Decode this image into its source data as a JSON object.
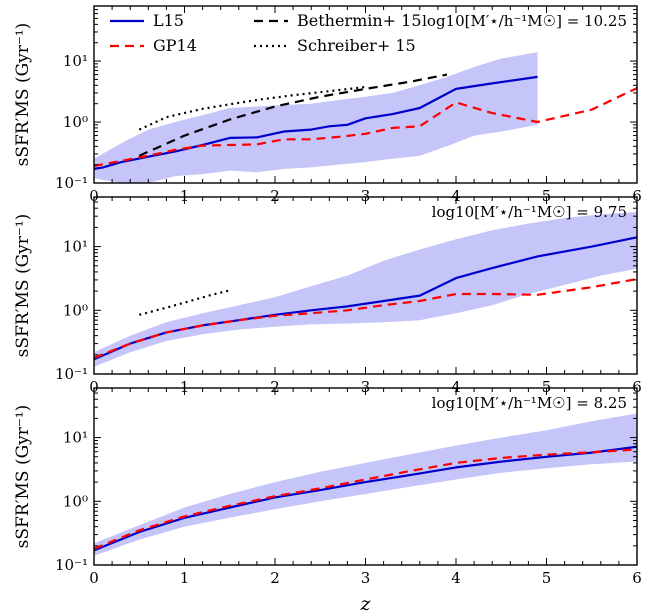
{
  "chart_data": [
    {
      "type": "line",
      "annotation": "log10[M′⋆/h⁻¹M☉] = 10.25",
      "ylabel": "sSFR′MS (Gyr⁻¹)",
      "xlim": [
        0,
        6
      ],
      "ylim": [
        0.1,
        80
      ],
      "yscale": "log",
      "yticks": [
        "10⁻¹",
        "10⁰",
        "10¹"
      ],
      "xticks": [
        "0",
        "1",
        "2",
        "3",
        "4",
        "5",
        "6"
      ],
      "legend": {
        "position": "top-left",
        "entries": [
          {
            "label": "L15",
            "style": "solid",
            "color": "#0000cc"
          },
          {
            "label": "Bethermin+ 15",
            "style": "dashed",
            "color": "#000000"
          },
          {
            "label": "GP14",
            "style": "dashed",
            "color": "#ff0000"
          },
          {
            "label": "Schreiber+ 15",
            "style": "dotted",
            "color": "#000000"
          }
        ]
      },
      "band": {
        "color": "#c5c5fa",
        "x": [
          0,
          0.3,
          0.6,
          0.9,
          1.2,
          1.5,
          1.8,
          2.1,
          2.4,
          2.7,
          3.0,
          3.3,
          3.6,
          3.9,
          4.2,
          4.5,
          4.9
        ],
        "low": [
          0.12,
          0.1,
          0.1,
          0.13,
          0.14,
          0.16,
          0.15,
          0.17,
          0.18,
          0.2,
          0.22,
          0.25,
          0.28,
          0.4,
          0.6,
          0.7,
          0.9
        ],
        "high": [
          0.25,
          0.45,
          0.75,
          1.0,
          1.3,
          1.7,
          1.8,
          1.9,
          2.0,
          2.3,
          2.6,
          3.0,
          4.0,
          5.5,
          8.0,
          11.0,
          14.0
        ]
      },
      "series": [
        {
          "name": "L15",
          "style": "solid",
          "color": "#0000cc",
          "x": [
            0,
            0.1,
            0.3,
            0.6,
            0.9,
            1.2,
            1.5,
            1.8,
            2.1,
            2.4,
            2.6,
            2.8,
            3.0,
            3.3,
            3.6,
            4.0,
            4.4,
            4.9
          ],
          "y": [
            0.17,
            0.18,
            0.22,
            0.27,
            0.33,
            0.42,
            0.55,
            0.56,
            0.7,
            0.75,
            0.85,
            0.9,
            1.15,
            1.35,
            1.7,
            3.5,
            4.3,
            5.5
          ]
        },
        {
          "name": "GP14",
          "style": "dashed",
          "color": "#ff0000",
          "x": [
            0,
            0.3,
            0.6,
            0.9,
            1.2,
            1.5,
            1.8,
            2.1,
            2.4,
            2.7,
            3.0,
            3.3,
            3.6,
            4.0,
            4.4,
            4.9,
            5.5,
            6.0
          ],
          "y": [
            0.19,
            0.23,
            0.28,
            0.35,
            0.41,
            0.42,
            0.43,
            0.52,
            0.52,
            0.57,
            0.64,
            0.8,
            0.85,
            2.1,
            1.4,
            1.0,
            1.6,
            3.6
          ]
        },
        {
          "name": "Bethermin+ 15",
          "style": "dashed",
          "color": "#000000",
          "x": [
            0.5,
            1.0,
            1.5,
            2.0,
            2.5,
            3.0,
            3.5,
            3.9
          ],
          "y": [
            0.28,
            0.6,
            1.1,
            1.8,
            2.6,
            3.5,
            4.6,
            6.0
          ]
        },
        {
          "name": "Schreiber+ 15",
          "style": "dotted",
          "color": "#000000",
          "x": [
            0.5,
            0.8,
            1.2,
            1.5,
            1.8,
            2.2,
            2.6,
            3.0
          ],
          "y": [
            0.75,
            1.2,
            1.65,
            1.95,
            2.3,
            2.75,
            3.2,
            3.75
          ]
        }
      ]
    },
    {
      "type": "line",
      "annotation": "log10[M′⋆/h⁻¹M☉] = 9.75",
      "ylabel": "sSFR′MS (Gyr⁻¹)",
      "xlim": [
        0,
        6
      ],
      "ylim": [
        0.1,
        60
      ],
      "yscale": "log",
      "yticks": [
        "10⁻¹",
        "10⁰",
        "10¹"
      ],
      "xticks": [
        "0",
        "1",
        "2",
        "3",
        "4",
        "5",
        "6"
      ],
      "band": {
        "color": "#c5c5fa",
        "x": [
          0,
          0.4,
          0.8,
          1.2,
          1.6,
          2.0,
          2.4,
          2.8,
          3.2,
          3.6,
          4.0,
          4.4,
          4.8,
          5.2,
          5.6,
          6.0
        ],
        "low": [
          0.13,
          0.22,
          0.33,
          0.42,
          0.5,
          0.55,
          0.6,
          0.62,
          0.65,
          0.7,
          0.9,
          1.2,
          1.8,
          2.5,
          3.5,
          4.5
        ],
        "high": [
          0.22,
          0.4,
          0.65,
          0.9,
          1.2,
          1.6,
          2.4,
          3.5,
          6.0,
          9.0,
          13.0,
          18.0,
          23.0,
          28.0,
          32.0,
          35.0
        ]
      },
      "series": [
        {
          "name": "L15",
          "style": "solid",
          "color": "#0000cc",
          "x": [
            0,
            0.4,
            0.8,
            1.2,
            1.6,
            2.0,
            2.4,
            2.8,
            3.2,
            3.6,
            4.0,
            4.4,
            4.9,
            5.5,
            6.0
          ],
          "y": [
            0.17,
            0.3,
            0.45,
            0.58,
            0.7,
            0.85,
            1.0,
            1.15,
            1.4,
            1.7,
            3.2,
            4.6,
            7.0,
            10.0,
            14.0
          ]
        },
        {
          "name": "GP14",
          "style": "dashed",
          "color": "#ff0000",
          "x": [
            0,
            0.4,
            0.8,
            1.2,
            1.6,
            2.0,
            2.4,
            2.8,
            3.2,
            3.6,
            4.0,
            4.4,
            4.9,
            5.5,
            6.0
          ],
          "y": [
            0.18,
            0.3,
            0.45,
            0.58,
            0.7,
            0.82,
            0.9,
            1.0,
            1.2,
            1.4,
            1.8,
            1.8,
            1.75,
            2.3,
            3.1
          ]
        },
        {
          "name": "Schreiber+ 15",
          "style": "dotted",
          "color": "#000000",
          "x": [
            0.5,
            0.8,
            1.1,
            1.3,
            1.5
          ],
          "y": [
            0.85,
            1.1,
            1.45,
            1.75,
            2.05
          ]
        }
      ]
    },
    {
      "type": "line",
      "annotation": "log10[M′⋆/h⁻¹M☉] = 8.25",
      "ylabel": "sSFR′MS (Gyr⁻¹)",
      "xlabel": "z",
      "xlim": [
        0,
        6
      ],
      "ylim": [
        0.1,
        60
      ],
      "yscale": "log",
      "yticks": [
        "10⁻¹",
        "10⁰",
        "10¹"
      ],
      "xticks": [
        "0",
        "1",
        "2",
        "3",
        "4",
        "5",
        "6"
      ],
      "band": {
        "color": "#c5c5fa",
        "x": [
          0,
          0.5,
          1.0,
          1.5,
          2.0,
          2.5,
          3.0,
          3.5,
          4.0,
          4.5,
          5.0,
          5.5,
          6.0
        ],
        "low": [
          0.14,
          0.25,
          0.4,
          0.55,
          0.75,
          1.0,
          1.3,
          1.7,
          2.2,
          2.8,
          3.3,
          3.8,
          4.2
        ],
        "high": [
          0.22,
          0.42,
          0.8,
          1.3,
          2.0,
          2.9,
          4.0,
          5.5,
          7.5,
          10.0,
          13.0,
          18.0,
          24.0
        ]
      },
      "series": [
        {
          "name": "L15",
          "style": "solid",
          "color": "#0000cc",
          "x": [
            0,
            0.5,
            1.0,
            1.5,
            2.0,
            2.5,
            3.0,
            3.5,
            4.0,
            4.5,
            5.0,
            5.5,
            6.0
          ],
          "y": [
            0.17,
            0.33,
            0.55,
            0.8,
            1.15,
            1.5,
            2.0,
            2.6,
            3.4,
            4.2,
            5.0,
            5.8,
            7.2
          ]
        },
        {
          "name": "GP14",
          "style": "dashed",
          "color": "#ff0000",
          "x": [
            0,
            0.5,
            1.0,
            1.5,
            2.0,
            2.5,
            3.0,
            3.5,
            4.0,
            4.5,
            5.0,
            5.5,
            6.0
          ],
          "y": [
            0.18,
            0.35,
            0.58,
            0.85,
            1.2,
            1.6,
            2.2,
            3.0,
            4.0,
            4.8,
            5.4,
            5.9,
            6.5
          ]
        }
      ]
    }
  ]
}
